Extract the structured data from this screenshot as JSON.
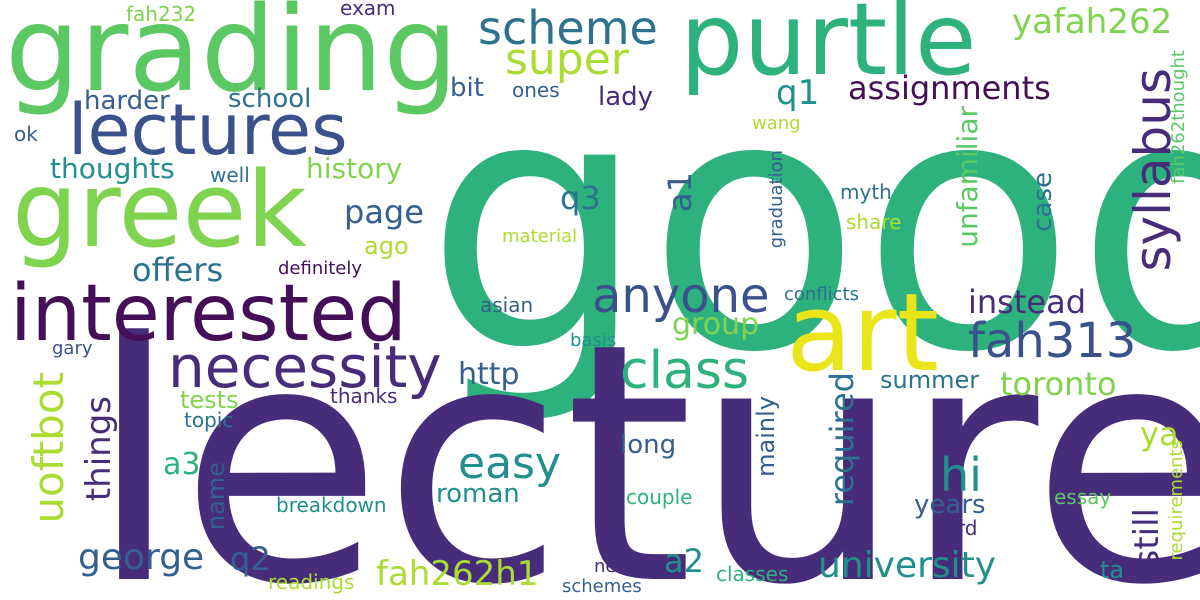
{
  "palette": {
    "dark_purple": "#472c7a",
    "deep_purple": "#440f57",
    "indigo": "#3b518b",
    "slate_blue": "#355f8d",
    "teal_blue": "#2c728e",
    "teal": "#21908d",
    "green_teal": "#2db27d",
    "green": "#5cc863",
    "light_green": "#7fd34e",
    "lime": "#aadc32",
    "yellow": "#e9e51a"
  },
  "words": [
    {
      "text": "good",
      "color": "green_teal"
    },
    {
      "text": "lecture",
      "color": "dark_purple"
    },
    {
      "text": "grading",
      "color": "green"
    },
    {
      "text": "purtle",
      "color": "green_teal"
    },
    {
      "text": "greek",
      "color": "light_green"
    },
    {
      "text": "lectures",
      "color": "indigo"
    },
    {
      "text": "interested",
      "color": "deep_purple"
    },
    {
      "text": "art",
      "color": "yellow"
    },
    {
      "text": "necessity",
      "color": "dark_purple"
    },
    {
      "text": "anyone",
      "color": "indigo"
    },
    {
      "text": "fah313",
      "color": "indigo"
    },
    {
      "text": "class",
      "color": "green_teal"
    },
    {
      "text": "syllabus",
      "color": "dark_purple"
    },
    {
      "text": "scheme",
      "color": "teal_blue"
    },
    {
      "text": "super",
      "color": "lime"
    },
    {
      "text": "easy",
      "color": "teal"
    },
    {
      "text": "hi",
      "color": "teal"
    },
    {
      "text": "uoftbot",
      "color": "lime"
    },
    {
      "text": "university",
      "color": "teal"
    },
    {
      "text": "yafah262",
      "color": "light_green"
    },
    {
      "text": "assignments",
      "color": "deep_purple"
    },
    {
      "text": "instead",
      "color": "dark_purple"
    },
    {
      "text": "toronto",
      "color": "light_green"
    },
    {
      "text": "fah262h1",
      "color": "lime"
    },
    {
      "text": "george",
      "color": "slate_blue"
    },
    {
      "text": "things",
      "color": "dark_purple"
    },
    {
      "text": "required",
      "color": "teal_blue"
    },
    {
      "text": "still",
      "color": "dark_purple"
    },
    {
      "text": "q1",
      "color": "teal"
    },
    {
      "text": "q2",
      "color": "slate_blue"
    },
    {
      "text": "q3",
      "color": "teal_blue"
    },
    {
      "text": "a1",
      "color": "slate_blue"
    },
    {
      "text": "a2",
      "color": "teal"
    },
    {
      "text": "a3",
      "color": "green_teal"
    },
    {
      "text": "ya",
      "color": "lime"
    },
    {
      "text": "page",
      "color": "slate_blue"
    },
    {
      "text": "offers",
      "color": "teal_blue"
    },
    {
      "text": "group",
      "color": "light_green"
    },
    {
      "text": "http",
      "color": "slate_blue"
    },
    {
      "text": "history",
      "color": "light_green"
    },
    {
      "text": "thoughts",
      "color": "teal"
    },
    {
      "text": "harder",
      "color": "slate_blue"
    },
    {
      "text": "school",
      "color": "teal_blue"
    },
    {
      "text": "lady",
      "color": "dark_purple"
    },
    {
      "text": "bit",
      "color": "slate_blue"
    },
    {
      "text": "ones",
      "color": "slate_blue"
    },
    {
      "text": "ago",
      "color": "lime"
    },
    {
      "text": "long",
      "color": "slate_blue"
    },
    {
      "text": "roman",
      "color": "teal"
    },
    {
      "text": "unfamiliar",
      "color": "green"
    },
    {
      "text": "case",
      "color": "teal_blue"
    },
    {
      "text": "summer",
      "color": "teal_blue"
    },
    {
      "text": "mainly",
      "color": "slate_blue"
    },
    {
      "text": "years",
      "color": "slate_blue"
    },
    {
      "text": "name",
      "color": "slate_blue"
    },
    {
      "text": "tests",
      "color": "light_green"
    },
    {
      "text": "topic",
      "color": "teal_blue"
    },
    {
      "text": "thanks",
      "color": "dark_purple"
    },
    {
      "text": "breakdown",
      "color": "teal"
    },
    {
      "text": "couple",
      "color": "green_teal"
    },
    {
      "text": "essay",
      "color": "green"
    },
    {
      "text": "hard",
      "color": "dark_purple"
    },
    {
      "text": "ta",
      "color": "teal"
    },
    {
      "text": "requirements",
      "color": "lime"
    },
    {
      "text": "fah262thought",
      "color": "green"
    },
    {
      "text": "graduation",
      "color": "slate_blue"
    },
    {
      "text": "myth",
      "color": "teal_blue"
    },
    {
      "text": "share",
      "color": "lime"
    },
    {
      "text": "wang",
      "color": "lime"
    },
    {
      "text": "material",
      "color": "lime"
    },
    {
      "text": "definitely",
      "color": "deep_purple"
    },
    {
      "text": "asian",
      "color": "slate_blue"
    },
    {
      "text": "conflicts",
      "color": "teal_blue"
    },
    {
      "text": "basis",
      "color": "teal"
    },
    {
      "text": "gary",
      "color": "indigo"
    },
    {
      "text": "ok",
      "color": "slate_blue"
    },
    {
      "text": "well",
      "color": "teal_blue"
    },
    {
      "text": "exam",
      "color": "dark_purple"
    },
    {
      "text": "fah232",
      "color": "light_green"
    },
    {
      "text": "readings",
      "color": "lime"
    },
    {
      "text": "never",
      "color": "dark_purple"
    },
    {
      "text": "schemes",
      "color": "slate_blue"
    },
    {
      "text": "classes",
      "color": "green_teal"
    }
  ]
}
